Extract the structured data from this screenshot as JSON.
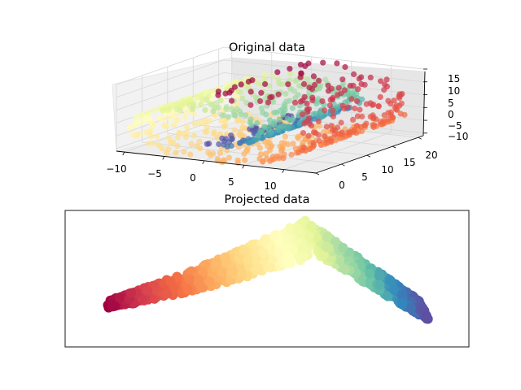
{
  "chart_data": [
    {
      "type": "scatter",
      "projection": "3d",
      "title": "Original data",
      "x_ticks": [
        "−10",
        "−5",
        "0",
        "5",
        "10"
      ],
      "y_ticks": [
        "0",
        "5",
        "10",
        "15",
        "20"
      ],
      "z_ticks": [
        "15",
        "10",
        "5",
        "0",
        "−5",
        "−10"
      ],
      "xlim": [
        -11,
        14
      ],
      "ylim": [
        0,
        21
      ],
      "zlim": [
        -11,
        15
      ],
      "colormap": "Spectral",
      "grid": true,
      "description_of_marks": "swiss roll point cloud coloured by position along the roll"
    },
    {
      "type": "scatter",
      "title": "Projected data",
      "colormap": "Spectral",
      "axes_ticks": false,
      "grid": false
    }
  ],
  "colors": {
    "spectral": [
      "#9e0142",
      "#d53e4f",
      "#f46d43",
      "#fdae61",
      "#fee08b",
      "#ffffbf",
      "#e6f598",
      "#abdda4",
      "#66c2a5",
      "#3288bd",
      "#5e4fa2"
    ],
    "pane": "#f2f2f2",
    "grid": "#d6d6d6",
    "axes_frame": "#000000"
  }
}
